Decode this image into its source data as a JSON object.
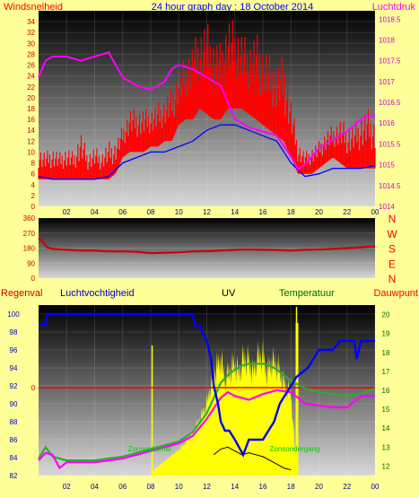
{
  "title": "24 hour graph day : 18 October 2014",
  "colors": {
    "background": "#ffff99",
    "wind": "#ff0000",
    "gust": "#0000ff",
    "pressure": "#ff00ff",
    "direction": "#cc0000",
    "rain": "#ff0000",
    "humidity": "#0000ff",
    "uv_fill": "#ffff00",
    "solar": "#000000",
    "temperature": "#33aa33",
    "dewpoint": "#ff00ff",
    "sun_markers": "#ffff00",
    "sun_label": "#00cc00"
  },
  "chart_data": [
    {
      "type": "line",
      "name": "wind-pressure",
      "y_label_left": "Windsnelheid",
      "y_label_right": "Luchtdruk",
      "ylim_left": [
        0,
        36
      ],
      "ylim_right": [
        1014,
        1018.7
      ],
      "yticks_left": [
        0,
        2,
        4,
        6,
        8,
        10,
        12,
        14,
        16,
        18,
        20,
        22,
        24,
        26,
        28,
        30,
        32,
        34
      ],
      "yticks_right": [
        1014,
        1014.5,
        1015,
        1015.5,
        1016,
        1016.5,
        1017,
        1017.5,
        1018,
        1018.5
      ],
      "xlim": [
        0,
        24
      ],
      "xticks": [
        "02",
        "04",
        "06",
        "08",
        "10",
        "12",
        "14",
        "16",
        "18",
        "20",
        "22",
        "00"
      ],
      "series": [
        {
          "key": "wind",
          "axis": "left",
          "x": [
            0,
            0.5,
            1,
            1.5,
            2,
            2.5,
            3,
            3.5,
            4,
            4.5,
            5,
            5.5,
            6,
            6.5,
            7,
            7.5,
            8,
            8.5,
            9,
            9.5,
            10,
            10.5,
            11,
            11.5,
            12,
            12.5,
            13,
            13.5,
            14,
            14.5,
            15,
            15.5,
            16,
            16.5,
            17,
            17.5,
            18,
            18.5,
            19,
            19.5,
            20,
            20.5,
            21,
            21.5,
            22,
            22.5,
            23,
            23.5,
            24
          ],
          "y_low": [
            5,
            5,
            5,
            5,
            5,
            5,
            5,
            5,
            5,
            5,
            5,
            6,
            9,
            10,
            10,
            10,
            11,
            11,
            12,
            12,
            15,
            16,
            16,
            18,
            17,
            16,
            16,
            18,
            18,
            18,
            17,
            16,
            15,
            14,
            13,
            12,
            9,
            6,
            6,
            6,
            7,
            8,
            9,
            8,
            7,
            7,
            7,
            7,
            7
          ],
          "y_high": [
            11,
            10,
            11,
            10,
            11,
            10,
            14,
            10,
            11,
            10,
            12,
            12,
            15,
            18,
            18,
            18,
            18,
            19,
            20,
            22,
            25,
            28,
            30,
            33,
            34,
            31,
            30,
            35,
            34,
            32,
            30,
            32,
            30,
            28,
            26,
            28,
            20,
            12,
            10,
            11,
            12,
            14,
            15,
            16,
            15,
            15,
            17,
            18,
            16
          ]
        },
        {
          "key": "gust",
          "axis": "left",
          "x": [
            0,
            1,
            2,
            3,
            4,
            5,
            6,
            7,
            8,
            9,
            10,
            11,
            12,
            13,
            14,
            15,
            16,
            17,
            18,
            19,
            20,
            21,
            22,
            23,
            24
          ],
          "y": [
            5.5,
            5,
            5,
            5,
            5,
            5.5,
            8,
            9,
            10,
            10,
            11,
            12,
            14,
            15,
            15,
            14,
            13,
            12,
            8,
            5.5,
            6,
            7,
            7,
            7,
            7.5
          ]
        },
        {
          "key": "pressure",
          "axis": "right",
          "x": [
            0,
            0.5,
            1,
            2,
            3,
            4,
            5,
            5.5,
            6,
            7,
            8,
            9,
            9.5,
            10,
            11,
            12,
            13,
            13.5,
            14,
            15,
            16,
            17,
            18,
            18.5,
            19,
            20,
            21,
            22,
            23,
            24
          ],
          "y": [
            1017.1,
            1017.5,
            1017.6,
            1017.6,
            1017.5,
            1017.6,
            1017.7,
            1017.4,
            1017.1,
            1016.9,
            1016.8,
            1017.0,
            1017.3,
            1017.4,
            1017.3,
            1017.1,
            1016.9,
            1016.5,
            1016.1,
            1015.9,
            1015.8,
            1015.7,
            1015.2,
            1014.9,
            1015.0,
            1015.4,
            1015.6,
            1015.8,
            1016.1,
            1016.2
          ]
        }
      ]
    },
    {
      "type": "line",
      "name": "wind-direction",
      "ylim": [
        0,
        360
      ],
      "yticks": [
        0,
        90,
        180,
        270,
        360
      ],
      "compass": [
        "N",
        "W",
        "S",
        "E",
        "N"
      ],
      "xlim": [
        0,
        24
      ],
      "x": [
        0,
        0.3,
        0.6,
        1,
        2,
        3,
        4,
        5,
        6,
        7,
        8,
        9,
        10,
        11,
        12,
        13,
        14,
        15,
        16,
        17,
        18,
        19,
        20,
        21,
        22,
        23,
        24
      ],
      "y": [
        240,
        220,
        185,
        175,
        170,
        165,
        165,
        160,
        160,
        158,
        150,
        152,
        155,
        160,
        162,
        165,
        170,
        172,
        170,
        168,
        165,
        170,
        172,
        175,
        180,
        185,
        190
      ]
    },
    {
      "type": "line",
      "name": "rain-humidity-uv-temperature",
      "labels": [
        "Regenval",
        "Luchtvochtigheid",
        "UV",
        "Temperatuur",
        "Dauwpunt"
      ],
      "ylim_humidity": [
        82,
        101
      ],
      "yticks_humidity": [
        82,
        84,
        86,
        88,
        90,
        92,
        94,
        96,
        98,
        100
      ],
      "ylim_temperature": [
        11.5,
        20.5
      ],
      "yticks_temperature": [
        12,
        13,
        14,
        15,
        16,
        17,
        18,
        19,
        20
      ],
      "rain_tick": "0",
      "rain_value": 0,
      "xlim": [
        0,
        24
      ],
      "sunrise_hour": 8.1,
      "sunset_hour": 18.4,
      "sunrise_label": "Zonsopkomst",
      "sunset_label": "Zonsondergang",
      "humidity": {
        "x": [
          0,
          0.5,
          0.6,
          1,
          6,
          11,
          11.2,
          11.5,
          12,
          12.3,
          12.5,
          12.8,
          13,
          13.3,
          13.6,
          14,
          14.6,
          15,
          15.6,
          16,
          16.4,
          16.8,
          17.2,
          17.6,
          18,
          18.4,
          18.8,
          19.2,
          19.6,
          20,
          21,
          21.5,
          22,
          22.5,
          22.7,
          23,
          24
        ],
        "y": [
          98.8,
          98.8,
          100,
          100,
          100,
          100,
          98.6,
          98.6,
          97,
          95,
          92,
          90,
          88,
          87,
          87,
          86,
          84.3,
          86,
          86,
          86,
          87,
          88,
          90,
          91,
          92,
          93,
          93.5,
          94,
          95,
          96,
          96,
          97,
          97,
          97,
          95,
          97,
          97
        ]
      },
      "temperature": {
        "x": [
          0,
          0.5,
          1,
          2,
          3,
          4,
          5,
          6,
          7,
          8,
          9,
          10,
          11,
          12,
          12.5,
          13,
          13.5,
          14,
          14.5,
          15,
          15.5,
          16,
          16.5,
          17,
          17.5,
          18,
          18.5,
          19,
          20,
          21,
          22,
          23,
          24
        ],
        "y": [
          12.4,
          13,
          12.5,
          12.3,
          12.3,
          12.3,
          12.4,
          12.5,
          12.7,
          12.9,
          13.1,
          13.3,
          13.8,
          14.8,
          15.6,
          16.4,
          16.8,
          17.1,
          17.3,
          17.4,
          17.4,
          17.4,
          17.3,
          17.1,
          16.8,
          16.5,
          16.3,
          16.1,
          15.9,
          15.8,
          15.7,
          15.8,
          16.1
        ]
      },
      "dewpoint": {
        "x": [
          0,
          0.5,
          1,
          1.5,
          2,
          3,
          4,
          5,
          6,
          7,
          8,
          9,
          10,
          11,
          12,
          13,
          13.5,
          14,
          15,
          16,
          17,
          18,
          18.5,
          19,
          20,
          21,
          22,
          23,
          24
        ],
        "y": [
          12.3,
          12.7,
          12.6,
          11.9,
          12.2,
          12.2,
          12.2,
          12.3,
          12.4,
          12.6,
          12.8,
          13.0,
          13.2,
          13.6,
          14.5,
          15.6,
          15.9,
          15.7,
          15.5,
          15.8,
          16,
          15.9,
          15.6,
          15.3,
          15.2,
          15.1,
          15.1,
          15.7,
          15.7
        ]
      },
      "uv": {
        "x": [
          8,
          8.5,
          9,
          9.5,
          10,
          10.5,
          11,
          11.5,
          12,
          12.3,
          12.6,
          13,
          13.3,
          13.6,
          14,
          14.3,
          14.6,
          15,
          15.3,
          15.6,
          16,
          16.3,
          16.6,
          17,
          17.3,
          17.6,
          18,
          18.4
        ],
        "y": [
          82.2,
          83,
          83.6,
          84.3,
          85,
          86,
          87.3,
          89,
          91,
          93.6,
          95.3,
          97,
          94,
          95.3,
          96.3,
          95,
          97,
          96.6,
          95,
          97,
          97.3,
          95,
          96.6,
          96,
          94.7,
          93.3,
          92.4,
          82
        ]
      },
      "solar": {
        "x": [
          12.5,
          13,
          13.5,
          14,
          14.5,
          15,
          15.5,
          16,
          16.5,
          17,
          17.5,
          18
        ],
        "y": [
          12.6,
          12.9,
          13,
          12.8,
          12.6,
          12.7,
          12.6,
          12.5,
          12.3,
          12.1,
          11.9,
          11.8
        ]
      }
    }
  ]
}
